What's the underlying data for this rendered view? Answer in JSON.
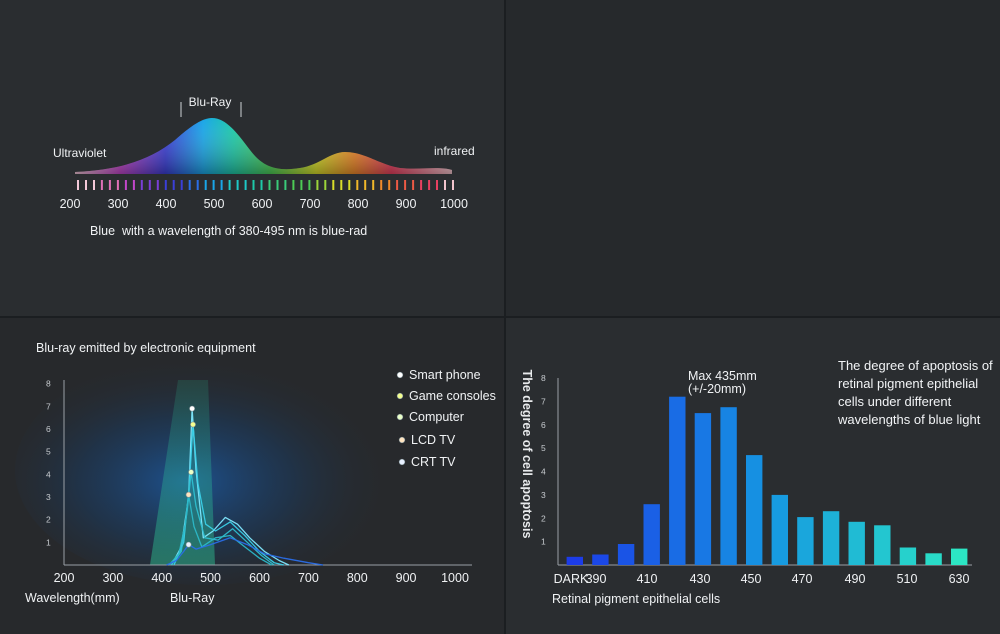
{
  "colors": {
    "bg": "#1b1e21",
    "accent": "#1e90ff",
    "teal": "#2ee6c8"
  },
  "spectrum": {
    "label_left": "Ultraviolet",
    "label_right": "infrared",
    "label_peak": "Blu-Ray",
    "ticks": [
      "200",
      "300",
      "400",
      "500",
      "600",
      "700",
      "800",
      "900",
      "1000"
    ],
    "caption": "Blue  with a wavelength of 380-495 nm is blue-rad"
  },
  "chart_data": [
    {
      "type": "line",
      "title": "Blu-ray emitted by electronic equipment",
      "xlabel": "Wavelength(mm)",
      "xlabel_secondary": "Blu-Ray",
      "xlim": [
        200,
        1000
      ],
      "ylim": [
        0,
        8
      ],
      "x_ticks": [
        "200",
        "300",
        "400",
        "500",
        "600",
        "700",
        "800",
        "900",
        "1000"
      ],
      "y_ticks": [
        "1",
        "2",
        "3",
        "4",
        "5",
        "6",
        "7",
        "8"
      ],
      "legend": [
        "Smart phone",
        "Game consoles",
        "Computer",
        "LCD TV",
        "CRT TV"
      ],
      "series": [
        {
          "name": "Smart phone",
          "peak": [
            462,
            6.9
          ],
          "points": [
            [
              420,
              0
            ],
            [
              440,
              0.8
            ],
            [
              455,
              3
            ],
            [
              462,
              6.9
            ],
            [
              470,
              4.2
            ],
            [
              485,
              1.2
            ],
            [
              505,
              1.5
            ],
            [
              530,
              2.1
            ],
            [
              555,
              1.8
            ],
            [
              580,
              1.2
            ],
            [
              610,
              0.6
            ],
            [
              640,
              0.2
            ],
            [
              660,
              0
            ]
          ]
        },
        {
          "name": "Game consoles",
          "peak": [
            464,
            6.2
          ],
          "points": [
            [
              425,
              0
            ],
            [
              445,
              1
            ],
            [
              456,
              3.4
            ],
            [
              464,
              6.2
            ],
            [
              474,
              3.6
            ],
            [
              490,
              1.8
            ],
            [
              510,
              1.5
            ],
            [
              540,
              1.9
            ],
            [
              570,
              1.3
            ],
            [
              600,
              0.6
            ],
            [
              630,
              0.1
            ],
            [
              650,
              0
            ]
          ]
        },
        {
          "name": "Computer",
          "peak": [
            460,
            4.1
          ],
          "points": [
            [
              420,
              0
            ],
            [
              440,
              0.6
            ],
            [
              452,
              2.4
            ],
            [
              460,
              4.1
            ],
            [
              470,
              2.6
            ],
            [
              488,
              1.2
            ],
            [
              515,
              1.1
            ],
            [
              545,
              1.6
            ],
            [
              575,
              1.0
            ],
            [
              605,
              0.4
            ],
            [
              630,
              0
            ]
          ]
        },
        {
          "name": "LCD TV",
          "peak": [
            455,
            3.1
          ],
          "points": [
            [
              415,
              0
            ],
            [
              435,
              0.5
            ],
            [
              448,
              1.8
            ],
            [
              455,
              3.1
            ],
            [
              466,
              1.7
            ],
            [
              482,
              0.8
            ],
            [
              510,
              1.2
            ],
            [
              540,
              1.3
            ],
            [
              570,
              0.8
            ],
            [
              600,
              0.3
            ],
            [
              625,
              0
            ]
          ]
        },
        {
          "name": "CRT TV",
          "peak": [
            455,
            0.9
          ],
          "points": [
            [
              410,
              0
            ],
            [
              430,
              0.2
            ],
            [
              445,
              0.6
            ],
            [
              455,
              0.9
            ],
            [
              470,
              0.7
            ],
            [
              500,
              0.9
            ],
            [
              540,
              1.2
            ],
            [
              575,
              0.9
            ],
            [
              610,
              0.5
            ],
            [
              650,
              0.3
            ],
            [
              700,
              0.1
            ],
            [
              730,
              0
            ]
          ]
        }
      ]
    },
    {
      "type": "bar",
      "title": "The degree of apoptosis of retinal pigment epithelial cells under different wavelengths of blue light",
      "xlabel": "Retinal pigment epithelial cells",
      "ylabel": "The degree of cell apoptosis",
      "annotation": "Max 435mm (+/-20mm)",
      "annotation_lines": [
        "Max 435mm",
        "(+/-20mm)"
      ],
      "ylim": [
        0,
        8
      ],
      "y_ticks": [
        "1",
        "2",
        "3",
        "4",
        "5",
        "6",
        "7",
        "8"
      ],
      "x_tick_labels": [
        "DARK",
        "390",
        "410",
        "430",
        "450",
        "470",
        "490",
        "510",
        "630"
      ],
      "values": [
        0.35,
        0.45,
        0.9,
        2.6,
        7.2,
        6.5,
        6.75,
        4.7,
        3.0,
        2.05,
        2.3,
        1.85,
        1.7,
        0.75,
        0.5,
        0.7
      ]
    }
  ]
}
